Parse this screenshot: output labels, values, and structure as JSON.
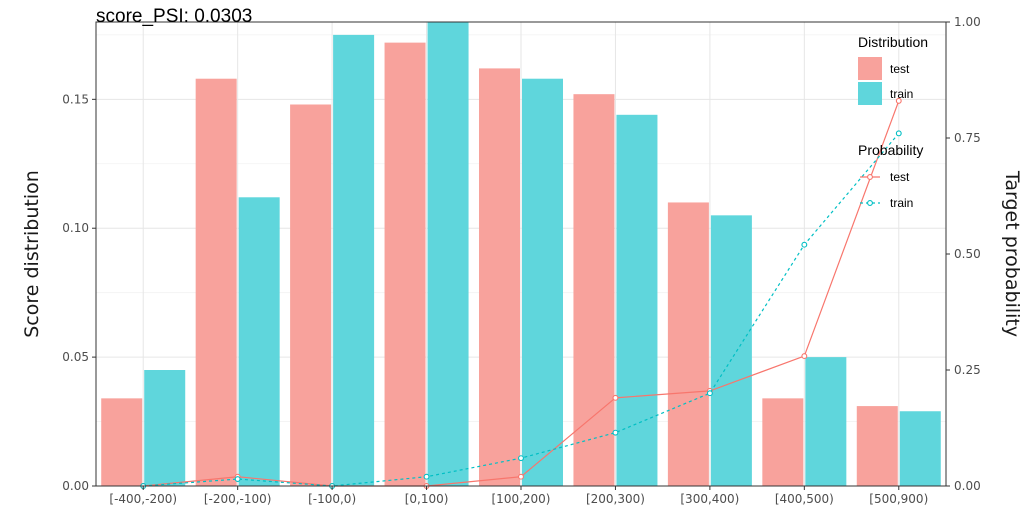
{
  "chart_data": {
    "type": "bar",
    "title": "score_PSI: 0.0303",
    "xlabel": "",
    "ylabel": "Score distribution",
    "y2label": "Target probability",
    "categories": [
      "[-400,-200)",
      "[-200,-100)",
      "[-100,0)",
      "[0,100)",
      "[100,200)",
      "[200,300)",
      "[300,400)",
      "[400,500)",
      "[500,900)"
    ],
    "ylim": [
      0,
      0.18
    ],
    "y2lim": [
      0,
      1.0
    ],
    "yticks": [
      "0.00",
      "0.05",
      "0.10",
      "0.15"
    ],
    "y2ticks": [
      "0.00",
      "0.25",
      "0.50",
      "0.75",
      "1.00"
    ],
    "grid": true,
    "legend_placement": "right",
    "bar_series": [
      {
        "name": "test",
        "color": "#f8a29c",
        "values": [
          0.034,
          0.158,
          0.148,
          0.172,
          0.162,
          0.152,
          0.11,
          0.034,
          0.031
        ]
      },
      {
        "name": "train",
        "color": "#5fd6dc",
        "values": [
          0.045,
          0.112,
          0.175,
          0.182,
          0.158,
          0.144,
          0.105,
          0.05,
          0.029
        ]
      }
    ],
    "line_series": [
      {
        "name": "test",
        "color": "#f8766d",
        "dash": "solid",
        "values": [
          0.0,
          0.02,
          0.0,
          0.0,
          0.02,
          0.19,
          0.205,
          0.28,
          0.83
        ]
      },
      {
        "name": "train",
        "color": "#00bfc4",
        "dash": "dotted",
        "values": [
          0.0,
          0.015,
          0.0,
          0.02,
          0.06,
          0.115,
          0.2,
          0.52,
          0.76
        ]
      }
    ],
    "legend": {
      "distribution_title": "Distribution",
      "probability_title": "Probability"
    }
  }
}
